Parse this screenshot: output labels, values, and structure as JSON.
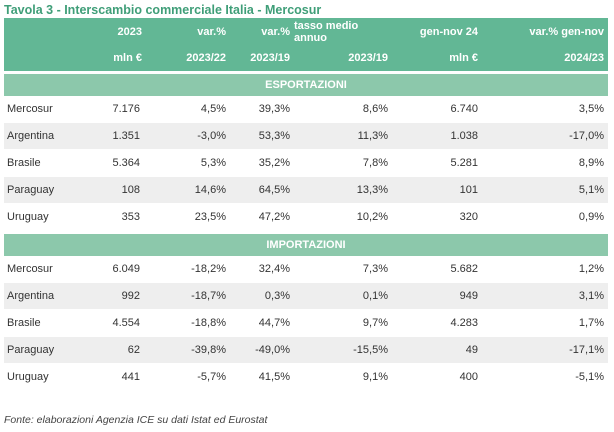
{
  "title": "Tavola 3 - Interscambio commerciale Italia - Mercosur",
  "header": {
    "row1": [
      "2023",
      "var.%",
      "var.%",
      "tasso medio annuo",
      "gen-nov 24",
      "var.% gen-nov"
    ],
    "row2": [
      "mln €",
      "2023/22",
      "2023/19",
      "2023/19",
      "mln €",
      "2024/23"
    ]
  },
  "sections": [
    {
      "label": "ESPORTAZIONI",
      "rows": [
        [
          "Mercosur",
          "7.176",
          "4,5%",
          "39,3%",
          "8,6%",
          "6.740",
          "3,5%"
        ],
        [
          "Argentina",
          "1.351",
          "-3,0%",
          "53,3%",
          "11,3%",
          "1.038",
          "-17,0%"
        ],
        [
          "Brasile",
          "5.364",
          "5,3%",
          "35,2%",
          "7,8%",
          "5.281",
          "8,9%"
        ],
        [
          "Paraguay",
          "108",
          "14,6%",
          "64,5%",
          "13,3%",
          "101",
          "5,1%"
        ],
        [
          "Uruguay",
          "353",
          "23,5%",
          "47,2%",
          "10,2%",
          "320",
          "0,9%"
        ]
      ]
    },
    {
      "label": "IMPORTAZIONI",
      "rows": [
        [
          "Mercosur",
          "6.049",
          "-18,2%",
          "32,4%",
          "7,3%",
          "5.682",
          "1,2%"
        ],
        [
          "Argentina",
          "992",
          "-18,7%",
          "0,3%",
          "0,1%",
          "949",
          "3,1%"
        ],
        [
          "Brasile",
          "4.554",
          "-18,8%",
          "44,7%",
          "9,7%",
          "4.283",
          "1,7%"
        ],
        [
          "Paraguay",
          "62",
          "-39,8%",
          "-49,0%",
          "-15,5%",
          "49",
          "-17,1%"
        ],
        [
          "Uruguay",
          "441",
          "-5,7%",
          "41,5%",
          "9,1%",
          "400",
          "-5,1%"
        ]
      ]
    }
  ],
  "source": "Fonte: elaborazioni Agenzia ICE su dati Istat ed Eurostat",
  "colors": {
    "header": "#62b795",
    "section": "#8cc8ab",
    "title": "#3f9e78",
    "alt_row": "#eeeeee"
  }
}
